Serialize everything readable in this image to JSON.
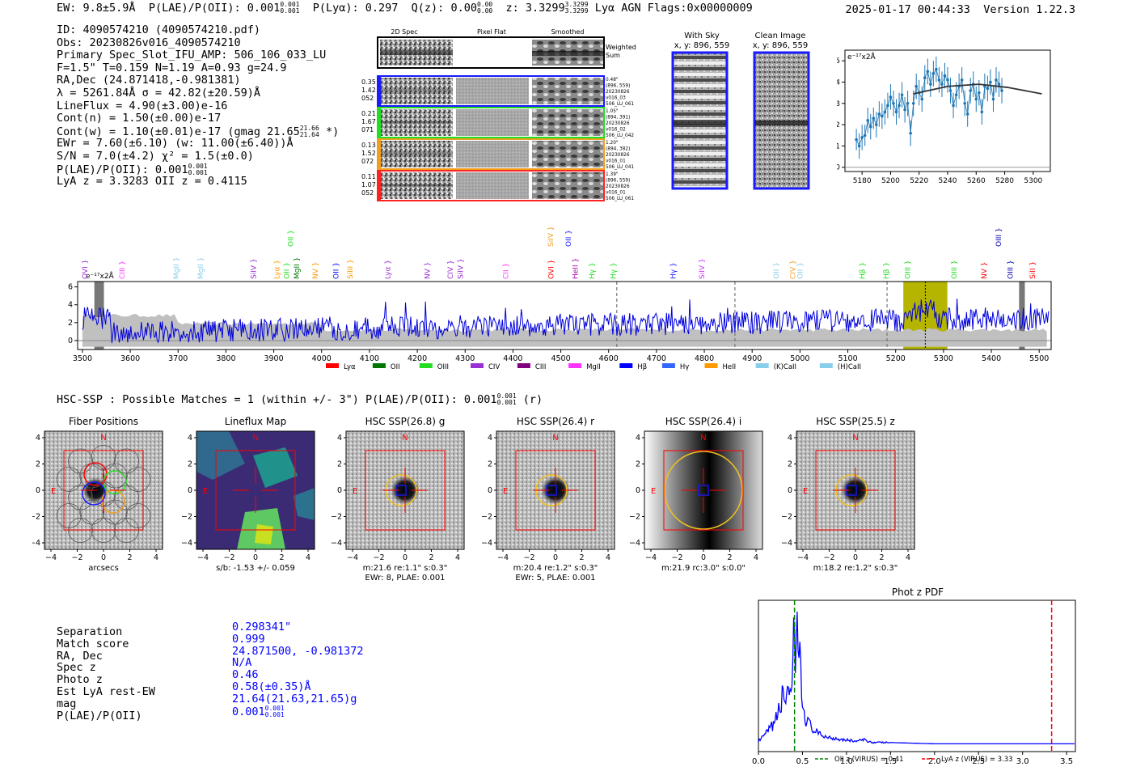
{
  "header": {
    "ew": "EW: 9.8±5.9Å",
    "plae_label": "P(LAE)/P(OII): 0.001",
    "plae_sup": "0.001",
    "plae_sub": "0.001",
    "plya": "P(Lyα): 0.297",
    "qz": "Q(z): 0.00",
    "qz_sup": "0.00",
    "qz_sub": "0.00",
    "z": "z: 3.3299",
    "z_sup": "3.3299",
    "z_sub": "3.3299",
    "tags": "Lyα  AGN  Flags:0x00000009",
    "datetime": "2025-01-17 00:44:33",
    "version": "Version 1.22.3"
  },
  "info": {
    "id": "ID: 4090574210 (4090574210.pdf)",
    "obs": "Obs: 20230826v016_4090574210",
    "primary": "Primary Spec_Slot_IFU_AMP: 506_106_033_LU",
    "fit": "F=1.5\"  T=0.159  N=1.19  A=0.93  g=24.9",
    "radec": "RA,Dec (24.871418,-0.981381)",
    "lambda": "λ = 5261.84Å  σ = 42.82(±20.59)Å",
    "lineflux": "LineFlux = 4.90(±3.00)e-16",
    "contn": "Cont(n) = 1.50(±0.00)e-17",
    "contw": "Cont(w) = 1.10(±0.01)e-17 (gmag 21.65",
    "contw_sup": "21.66",
    "contw_sub": "21.64",
    "contw_end": " *)",
    "ewr": "EWr = 7.60(±6.10) (w: 11.00(±6.40))Å",
    "sn": "S/N = 7.0(±4.2)  χ² = 1.5(±0.0)",
    "plae": "P(LAE)/P(OII): 0.001",
    "plae_sup": "0.001",
    "plae_sub": "0.001",
    "lya": "LyA z = 3.3283  OII z = 0.4115"
  },
  "cutouts": {
    "col_headers": [
      "2D Spec",
      "Pixel Flat",
      "Smoothed"
    ],
    "weighted_sum": [
      "Weighted",
      "Sum"
    ],
    "rows": [
      {
        "left": [
          "0.35",
          "1.42",
          "052"
        ],
        "right": [
          "0.48\"",
          "(896, 559)",
          "20230826",
          "v016_03",
          "506_LU_061"
        ],
        "color": "#1a1aff"
      },
      {
        "left": [
          "0.21",
          "1.67",
          "071"
        ],
        "right": [
          "1.05\"",
          "(894, 391)",
          "20230826",
          "v016_02",
          "506_LU_042"
        ],
        "color": "#22dd22"
      },
      {
        "left": [
          "0.13",
          "1.52",
          "072"
        ],
        "right": [
          "1.20\"",
          "(894, 382)",
          "20230826",
          "v016_01",
          "506_LU_041"
        ],
        "color": "#f0a020"
      },
      {
        "left": [
          "0.11",
          "1.07",
          "052"
        ],
        "right": [
          "1.39\"",
          "(896, 559)",
          "20230826",
          "v016_01",
          "506_LU_061"
        ],
        "color": "#ff2020"
      }
    ],
    "with_sky": [
      "With Sky",
      "x, y: 896, 559"
    ],
    "clean_image": [
      "Clean Image",
      "x, y: 896, 559"
    ]
  },
  "zoom_chart": {
    "type": "line",
    "ylabel": "e⁻¹⁷x2Å",
    "xlim": [
      5168,
      5312
    ],
    "ylim": [
      -0.2,
      5.5
    ],
    "xticks": [
      "5180",
      "5200",
      "5220",
      "5240",
      "5260",
      "5280",
      "5300"
    ],
    "yticks": [
      "0",
      "1",
      "2",
      "3",
      "4",
      "5"
    ],
    "x": [
      5176,
      5178,
      5180,
      5182,
      5184,
      5186,
      5188,
      5190,
      5192,
      5194,
      5196,
      5198,
      5200,
      5202,
      5204,
      5206,
      5208,
      5210,
      5212,
      5214,
      5216,
      5218,
      5220,
      5222,
      5224,
      5226,
      5228,
      5230,
      5232,
      5234,
      5236,
      5238,
      5240,
      5242,
      5244,
      5246,
      5248,
      5250,
      5252,
      5254,
      5256,
      5258,
      5260,
      5262,
      5264,
      5266,
      5268,
      5270,
      5272,
      5274,
      5276,
      5278
    ],
    "values": [
      1.3,
      1.0,
      1.4,
      1.5,
      2.2,
      1.9,
      2.3,
      2.0,
      2.5,
      2.4,
      2.6,
      2.9,
      3.3,
      3.0,
      2.6,
      2.9,
      3.4,
      2.7,
      3.0,
      1.6,
      3.0,
      3.8,
      3.5,
      3.2,
      4.2,
      4.5,
      3.9,
      4.4,
      4.6,
      4.1,
      3.9,
      4.3,
      4.1,
      3.6,
      2.9,
      3.4,
      3.8,
      4.1,
      3.0,
      2.5,
      3.6,
      3.9,
      3.2,
      3.5,
      2.6,
      3.8,
      3.7,
      4.0,
      3.2,
      4.1,
      3.9,
      3.6
    ],
    "errors": [
      0.5,
      0.6,
      0.6,
      0.5,
      0.6,
      0.6,
      0.5,
      0.6,
      0.6,
      0.6,
      0.6,
      0.6,
      0.6,
      0.6,
      0.6,
      0.6,
      0.6,
      0.6,
      0.6,
      0.6,
      0.6,
      0.6,
      0.6,
      0.6,
      0.6,
      0.6,
      0.6,
      0.6,
      0.6,
      0.6,
      0.6,
      0.6,
      0.6,
      0.6,
      0.6,
      0.6,
      0.6,
      0.6,
      0.6,
      0.6,
      0.6,
      0.6,
      0.6,
      0.6,
      0.6,
      0.6,
      0.6,
      0.6,
      0.6,
      0.6,
      0.6,
      0.6
    ],
    "fit_x": [
      5216,
      5240,
      5262,
      5282,
      5306
    ],
    "fit_y": [
      3.45,
      3.8,
      3.9,
      3.75,
      3.45
    ]
  },
  "full_spectrum": {
    "type": "line",
    "ylabel": "e⁻¹⁷x2Å",
    "xlim": [
      3490,
      5525
    ],
    "ylim": [
      -1.0,
      6.6
    ],
    "xticks": [
      "3500",
      "3600",
      "3700",
      "3800",
      "3900",
      "4000",
      "4100",
      "4200",
      "4300",
      "4400",
      "4500",
      "4600",
      "4700",
      "4800",
      "4900",
      "5000",
      "5100",
      "5200",
      "5300",
      "5400",
      "5500"
    ],
    "yticks": [
      "0",
      "2",
      "4",
      "6"
    ],
    "highlight_band": [
      5216,
      5308
    ],
    "highlight_center": 5262,
    "gray_bands": [
      [
        3525,
        3545
      ],
      [
        5458,
        5470
      ]
    ],
    "dashed_lines": [
      4617,
      4864,
      5182
    ],
    "line_labels": [
      {
        "wave": 3505,
        "label": "OVI",
        "color": "#9a2fd6"
      },
      {
        "wave": 3583,
        "label": "CIII",
        "color": "#ff33ff"
      },
      {
        "wave": 3696,
        "label": "MgII",
        "color": "#87ceeb"
      },
      {
        "wave": 3747,
        "label": "MgII",
        "color": "#87ceeb"
      },
      {
        "wave": 3858,
        "label": "SiIV",
        "color": "#9a2fd6"
      },
      {
        "wave": 3907,
        "label": "Lyα",
        "color": "#ff9900"
      },
      {
        "wave": 3927,
        "label": "OII",
        "color": "#22dd22"
      },
      {
        "wave": 3948,
        "label": "MgII",
        "color": "#007700"
      },
      {
        "wave": 3987,
        "label": "NV",
        "color": "#ff9900"
      },
      {
        "wave": 4030,
        "label": "OII",
        "color": "#0000ff"
      },
      {
        "wave": 4060,
        "label": "SiIII",
        "color": "#ff9900"
      },
      {
        "wave": 4138,
        "label": "Lyα",
        "color": "#9a2fd6"
      },
      {
        "wave": 4221,
        "label": "NV",
        "color": "#9a2fd6"
      },
      {
        "wave": 4269,
        "label": "CIV",
        "color": "#9a2fd6"
      },
      {
        "wave": 4290,
        "label": "SiIV",
        "color": "#9a2fd6"
      },
      {
        "wave": 4385,
        "label": "CII",
        "color": "#ff33ff"
      },
      {
        "wave": 4480,
        "label": "OVI",
        "color": "#ff0000"
      },
      {
        "wave": 4530,
        "label": "HeII",
        "color": "#aa00aa"
      },
      {
        "wave": 4565,
        "label": "Hγ",
        "color": "#22dd22"
      },
      {
        "wave": 4610,
        "label": "Hγ",
        "color": "#22dd22"
      },
      {
        "wave": 4735,
        "label": "Hγ",
        "color": "#1a1aff"
      },
      {
        "wave": 4795,
        "label": "SiIV",
        "color": "#cc33ff"
      },
      {
        "wave": 4950,
        "label": "OII",
        "color": "#87ceeb"
      },
      {
        "wave": 4985,
        "label": "CIV",
        "color": "#f0a020"
      },
      {
        "wave": 5000,
        "label": "OII",
        "color": "#87ceeb"
      },
      {
        "wave": 5130,
        "label": "Hβ",
        "color": "#22dd22"
      },
      {
        "wave": 5180,
        "label": "Hβ",
        "color": "#22dd22"
      },
      {
        "wave": 5225,
        "label": "OIII",
        "color": "#22dd22"
      },
      {
        "wave": 5322,
        "label": "OIII",
        "color": "#22dd22"
      },
      {
        "wave": 5385,
        "label": "NV",
        "color": "#ff0000"
      },
      {
        "wave": 5440,
        "label": "OIII",
        "color": "#0000aa"
      },
      {
        "wave": 5486,
        "label": "SiII",
        "color": "#ff0000"
      }
    ],
    "upper_labels": [
      {
        "wave": 3935,
        "label": "OII",
        "color": "#22dd22"
      },
      {
        "wave": 4479,
        "label": "SiIV",
        "color": "#f0a020"
      },
      {
        "wave": 4516,
        "label": "OII",
        "color": "#1a1aff"
      },
      {
        "wave": 5415,
        "label": "OIII",
        "color": "#0000aa"
      }
    ],
    "legend": [
      {
        "label": "Lyα",
        "color": "#ff0000"
      },
      {
        "label": "OII",
        "color": "#007700"
      },
      {
        "label": "OIII",
        "color": "#22dd22"
      },
      {
        "label": "CIV",
        "color": "#9a2fd6"
      },
      {
        "label": "CIII",
        "color": "#800080"
      },
      {
        "label": "MgII",
        "color": "#ff33ff"
      },
      {
        "label": "Hβ",
        "color": "#0000ff"
      },
      {
        "label": "Hγ",
        "color": "#3366ff"
      },
      {
        "label": "HeII",
        "color": "#ff9900"
      },
      {
        "label": "(K)CaII",
        "color": "#87ceeb"
      },
      {
        "label": "(H)CaII",
        "color": "#87ceeb"
      }
    ]
  },
  "hsc_line": {
    "text": "HSC-SSP : Possible Matches = 1 (within +/- 3\")  P(LAE)/P(OII): 0.001",
    "sup": "0.001",
    "sub": "0.001",
    "end": " (r)"
  },
  "thumbnails": {
    "axis_ticks": [
      "−4",
      "−2",
      "0",
      "2",
      "4"
    ],
    "north": "N",
    "east": "E",
    "panels": [
      {
        "title": "Fiber Positions",
        "caption1": "arcsecs",
        "caption2": "",
        "kind": "fiber"
      },
      {
        "title": "Lineflux Map",
        "caption1": "s/b: -1.53 +/- 0.059",
        "caption2": "",
        "kind": "lineflux"
      },
      {
        "title": "HSC SSP(26.8) g",
        "caption1": "m:21.6  re:1.1\"  s:0.3\"",
        "caption2": "EWr: 8, PLAE: 0.001",
        "kind": "hsc"
      },
      {
        "title": "HSC SSP(26.4) r",
        "caption1": "m:20.4  re:1.2\"  s:0.3\"",
        "caption2": "EWr: 5, PLAE: 0.001",
        "kind": "hsc"
      },
      {
        "title": "HSC SSP(26.4) i",
        "caption1": "m:21.9 rc:3.0\"  s:0.0\"",
        "caption2": "",
        "kind": "gradient"
      },
      {
        "title": "HSC SSP(25.5) z",
        "caption1": "m:18.2  re:1.2\"  s:0.3\"",
        "caption2": "",
        "kind": "hsc"
      }
    ]
  },
  "match": {
    "labels": [
      "Separation",
      "Match score",
      "RA, Dec",
      "Spec z",
      "Photo z",
      "Est LyA rest-EW",
      "mag",
      "P(LAE)/P(OII)"
    ],
    "values": [
      "0.298341\"",
      "0.999",
      "24.871500, -0.981372",
      "N/A",
      "0.46",
      "0.58(±0.35)Å",
      "21.64(21.63,21.65)g",
      "0.001"
    ],
    "plae_sup": "0.001",
    "plae_sub": "0.001"
  },
  "chart_data": [
    {
      "type": "line",
      "title": "Phot z PDF",
      "xlim": [
        0.0,
        3.6
      ],
      "xticks": [
        "0.0",
        "0.5",
        "1.0",
        "1.5",
        "2.0",
        "2.5",
        "3.0",
        "3.5"
      ],
      "x": [
        0.0,
        0.05,
        0.1,
        0.15,
        0.2,
        0.25,
        0.28,
        0.3,
        0.33,
        0.35,
        0.38,
        0.4,
        0.42,
        0.44,
        0.46,
        0.48,
        0.5,
        0.53,
        0.56,
        0.6,
        0.65,
        0.7,
        0.8,
        0.9,
        1.0,
        1.1,
        1.2,
        1.3,
        1.5,
        2.0,
        2.5,
        3.0,
        3.5,
        3.6
      ],
      "y": [
        0.03,
        0.06,
        0.1,
        0.14,
        0.2,
        0.3,
        0.4,
        0.32,
        0.5,
        0.42,
        0.35,
        0.78,
        0.55,
        0.9,
        0.72,
        0.55,
        0.3,
        0.22,
        0.18,
        0.14,
        0.1,
        0.08,
        0.06,
        0.05,
        0.04,
        0.03,
        0.04,
        0.02,
        0.02,
        0.01,
        0.01,
        0.01,
        0.01,
        0.01
      ],
      "vlines": [
        {
          "x": 0.41,
          "label": "OII z (VIRUS) = 0.41",
          "color": "#008000"
        },
        {
          "x": 3.33,
          "label": "LyA z (VIRUS) = 3.33",
          "color": "#ff0000"
        }
      ]
    }
  ]
}
